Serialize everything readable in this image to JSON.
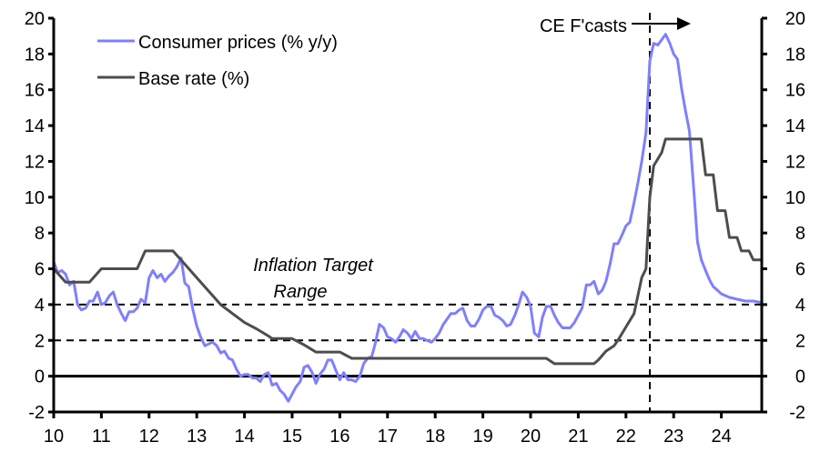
{
  "chart_data": {
    "type": "line",
    "title": "",
    "xlabel": "",
    "ylabel": "",
    "ylabel_right": "",
    "xlim": [
      10,
      24.85
    ],
    "ylim": [
      -2,
      20
    ],
    "y_ticks": [
      -2,
      0,
      2,
      4,
      6,
      8,
      10,
      12,
      14,
      16,
      18,
      20
    ],
    "y_tick_labels": [
      "-2",
      "0",
      "2",
      "4",
      "6",
      "8",
      "10",
      "12",
      "14",
      "16",
      "18",
      "20"
    ],
    "x_ticks": [
      10,
      11,
      12,
      13,
      14,
      15,
      16,
      17,
      18,
      19,
      20,
      21,
      22,
      23,
      24
    ],
    "x_tick_labels": [
      "10",
      "11",
      "12",
      "13",
      "14",
      "15",
      "16",
      "17",
      "18",
      "19",
      "20",
      "21",
      "22",
      "23",
      "24"
    ],
    "grid": false,
    "legend_position": "top-left",
    "reference_lines": [
      {
        "name": "inflation-target-upper",
        "y": 4,
        "style": "dashed"
      },
      {
        "name": "inflation-target-lower",
        "y": 2,
        "style": "dashed"
      },
      {
        "name": "zero-line",
        "y": 0,
        "style": "solid"
      }
    ],
    "forecast_start": 22.5,
    "annotations": {
      "forecast_label": "CE F'casts",
      "target_label_line1": "Inflation Target",
      "target_label_line2": "Range"
    },
    "series": [
      {
        "name": "Consumer prices (% y/y)",
        "color": "#7f7fff",
        "points": [
          [
            10.0,
            6.4
          ],
          [
            10.08,
            5.8
          ],
          [
            10.17,
            5.9
          ],
          [
            10.25,
            5.7
          ],
          [
            10.33,
            5.1
          ],
          [
            10.42,
            5.3
          ],
          [
            10.5,
            4.0
          ],
          [
            10.58,
            3.7
          ],
          [
            10.67,
            3.8
          ],
          [
            10.75,
            4.2
          ],
          [
            10.83,
            4.2
          ],
          [
            10.92,
            4.7
          ],
          [
            11.0,
            4.0
          ],
          [
            11.08,
            4.1
          ],
          [
            11.17,
            4.5
          ],
          [
            11.25,
            4.7
          ],
          [
            11.33,
            4.0
          ],
          [
            11.42,
            3.5
          ],
          [
            11.5,
            3.1
          ],
          [
            11.58,
            3.6
          ],
          [
            11.67,
            3.6
          ],
          [
            11.75,
            3.8
          ],
          [
            11.83,
            4.3
          ],
          [
            11.92,
            4.1
          ],
          [
            12.0,
            5.5
          ],
          [
            12.08,
            5.9
          ],
          [
            12.17,
            5.5
          ],
          [
            12.25,
            5.7
          ],
          [
            12.33,
            5.3
          ],
          [
            12.42,
            5.6
          ],
          [
            12.5,
            5.8
          ],
          [
            12.58,
            6.1
          ],
          [
            12.67,
            6.6
          ],
          [
            12.75,
            5.2
          ],
          [
            12.83,
            5.0
          ],
          [
            12.92,
            3.7
          ],
          [
            13.0,
            2.8
          ],
          [
            13.08,
            2.2
          ],
          [
            13.17,
            1.7
          ],
          [
            13.25,
            1.8
          ],
          [
            13.33,
            1.9
          ],
          [
            13.42,
            1.7
          ],
          [
            13.5,
            1.3
          ],
          [
            13.58,
            1.4
          ],
          [
            13.67,
            1.0
          ],
          [
            13.75,
            0.9
          ],
          [
            13.83,
            0.4
          ],
          [
            13.92,
            0.0
          ],
          [
            14.0,
            0.1
          ],
          [
            14.08,
            0.1
          ],
          [
            14.17,
            -0.1
          ],
          [
            14.25,
            -0.1
          ],
          [
            14.33,
            -0.3
          ],
          [
            14.42,
            0.1
          ],
          [
            14.5,
            0.2
          ],
          [
            14.58,
            -0.5
          ],
          [
            14.67,
            -0.4
          ],
          [
            14.75,
            -0.8
          ],
          [
            14.83,
            -1.0
          ],
          [
            14.92,
            -1.4
          ],
          [
            15.0,
            -1.0
          ],
          [
            15.08,
            -0.6
          ],
          [
            15.17,
            -0.3
          ],
          [
            15.25,
            0.5
          ],
          [
            15.33,
            0.6
          ],
          [
            15.42,
            0.2
          ],
          [
            15.5,
            -0.4
          ],
          [
            15.58,
            0.1
          ],
          [
            15.67,
            0.4
          ],
          [
            15.75,
            0.9
          ],
          [
            15.83,
            0.9
          ],
          [
            15.92,
            0.3
          ],
          [
            16.0,
            -0.2
          ],
          [
            16.08,
            0.2
          ],
          [
            16.17,
            -0.2
          ],
          [
            16.25,
            -0.2
          ],
          [
            16.33,
            -0.3
          ],
          [
            16.42,
            0.0
          ],
          [
            16.5,
            0.7
          ],
          [
            16.58,
            1.0
          ],
          [
            16.67,
            1.1
          ],
          [
            16.75,
            1.9
          ],
          [
            16.83,
            2.9
          ],
          [
            16.92,
            2.7
          ],
          [
            17.0,
            2.2
          ],
          [
            17.08,
            2.1
          ],
          [
            17.17,
            1.9
          ],
          [
            17.25,
            2.2
          ],
          [
            17.33,
            2.6
          ],
          [
            17.42,
            2.4
          ],
          [
            17.5,
            2.1
          ],
          [
            17.58,
            2.5
          ],
          [
            17.67,
            2.1
          ],
          [
            17.75,
            2.1
          ],
          [
            17.83,
            2.0
          ],
          [
            17.92,
            1.9
          ],
          [
            18.0,
            2.1
          ],
          [
            18.08,
            2.4
          ],
          [
            18.17,
            2.9
          ],
          [
            18.25,
            3.2
          ],
          [
            18.33,
            3.5
          ],
          [
            18.42,
            3.5
          ],
          [
            18.5,
            3.7
          ],
          [
            18.58,
            3.8
          ],
          [
            18.67,
            3.1
          ],
          [
            18.75,
            2.8
          ],
          [
            18.83,
            2.8
          ],
          [
            18.92,
            3.2
          ],
          [
            19.0,
            3.7
          ],
          [
            19.08,
            3.9
          ],
          [
            19.17,
            3.9
          ],
          [
            19.25,
            3.4
          ],
          [
            19.33,
            3.3
          ],
          [
            19.42,
            3.1
          ],
          [
            19.5,
            2.8
          ],
          [
            19.58,
            2.9
          ],
          [
            19.67,
            3.4
          ],
          [
            19.75,
            4.0
          ],
          [
            19.83,
            4.7
          ],
          [
            19.92,
            4.4
          ],
          [
            20.0,
            3.9
          ],
          [
            20.08,
            2.4
          ],
          [
            20.17,
            2.2
          ],
          [
            20.25,
            3.3
          ],
          [
            20.33,
            3.9
          ],
          [
            20.42,
            3.9
          ],
          [
            20.5,
            3.4
          ],
          [
            20.58,
            3.0
          ],
          [
            20.67,
            2.7
          ],
          [
            20.75,
            2.7
          ],
          [
            20.83,
            2.7
          ],
          [
            20.92,
            3.0
          ],
          [
            21.0,
            3.4
          ],
          [
            21.08,
            3.8
          ],
          [
            21.17,
            5.1
          ],
          [
            21.25,
            5.1
          ],
          [
            21.33,
            5.3
          ],
          [
            21.42,
            4.6
          ],
          [
            21.5,
            4.8
          ],
          [
            21.58,
            5.3
          ],
          [
            21.67,
            6.3
          ],
          [
            21.75,
            7.4
          ],
          [
            21.83,
            7.4
          ],
          [
            21.92,
            7.9
          ],
          [
            22.0,
            8.4
          ],
          [
            22.08,
            8.6
          ],
          [
            22.17,
            9.7
          ],
          [
            22.25,
            10.8
          ],
          [
            22.33,
            12.0
          ],
          [
            22.42,
            13.6
          ],
          [
            22.5,
            17.6
          ],
          [
            22.58,
            18.6
          ],
          [
            22.67,
            18.5
          ],
          [
            22.75,
            18.8
          ],
          [
            22.83,
            19.1
          ],
          [
            22.92,
            18.6
          ],
          [
            23.0,
            18.0
          ],
          [
            23.08,
            17.7
          ],
          [
            23.17,
            16.0
          ],
          [
            23.25,
            14.8
          ],
          [
            23.33,
            13.7
          ],
          [
            23.42,
            10.5
          ],
          [
            23.5,
            7.5
          ],
          [
            23.58,
            6.5
          ],
          [
            23.67,
            5.9
          ],
          [
            23.75,
            5.4
          ],
          [
            23.83,
            5.0
          ],
          [
            23.92,
            4.8
          ],
          [
            24.0,
            4.6
          ],
          [
            24.17,
            4.4
          ],
          [
            24.33,
            4.3
          ],
          [
            24.5,
            4.2
          ],
          [
            24.67,
            4.2
          ],
          [
            24.85,
            4.1
          ]
        ]
      },
      {
        "name": "Base rate (%)",
        "color": "#4d4d4d",
        "points": [
          [
            10.0,
            6.0
          ],
          [
            10.25,
            5.25
          ],
          [
            10.75,
            5.25
          ],
          [
            11.0,
            6.0
          ],
          [
            11.75,
            6.0
          ],
          [
            11.92,
            7.0
          ],
          [
            12.5,
            7.0
          ],
          [
            12.67,
            6.5
          ],
          [
            13.0,
            5.5
          ],
          [
            13.25,
            4.75
          ],
          [
            13.5,
            4.0
          ],
          [
            13.75,
            3.5
          ],
          [
            14.0,
            3.0
          ],
          [
            14.25,
            2.65
          ],
          [
            14.5,
            2.25
          ],
          [
            14.58,
            2.1
          ],
          [
            15.0,
            2.1
          ],
          [
            15.25,
            1.75
          ],
          [
            15.5,
            1.35
          ],
          [
            16.0,
            1.35
          ],
          [
            16.25,
            1.0
          ],
          [
            20.33,
            1.0
          ],
          [
            20.5,
            0.7
          ],
          [
            21.33,
            0.7
          ],
          [
            21.42,
            0.9
          ],
          [
            21.58,
            1.4
          ],
          [
            21.75,
            1.7
          ],
          [
            21.83,
            2.0
          ],
          [
            22.0,
            2.75
          ],
          [
            22.17,
            3.5
          ],
          [
            22.25,
            4.5
          ],
          [
            22.33,
            5.5
          ],
          [
            22.42,
            6.0
          ],
          [
            22.5,
            10.0
          ],
          [
            22.58,
            11.75
          ],
          [
            22.75,
            12.5
          ],
          [
            22.83,
            13.25
          ],
          [
            23.58,
            13.25
          ],
          [
            23.67,
            11.25
          ],
          [
            23.83,
            11.25
          ],
          [
            23.92,
            9.25
          ],
          [
            24.08,
            9.25
          ],
          [
            24.17,
            7.75
          ],
          [
            24.33,
            7.75
          ],
          [
            24.42,
            7.0
          ],
          [
            24.58,
            7.0
          ],
          [
            24.67,
            6.5
          ],
          [
            24.85,
            6.5
          ]
        ]
      }
    ]
  }
}
